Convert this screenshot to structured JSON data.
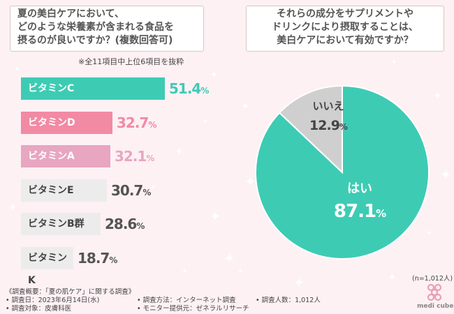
{
  "questions": {
    "left": [
      "夏の美白ケアにおいて、",
      "どのような栄養素が含まれる食品を",
      "摂るのが良いですか？(複数回答可)"
    ],
    "right": [
      "それらの成分をサプリメントや",
      "ドリンクにより摂取することは、",
      "美白ケアにおいて有効ですか？"
    ]
  },
  "note": "※全11項目中上位6項目を抜粋",
  "chart_data": [
    {
      "type": "bar",
      "orientation": "horizontal",
      "title": "夏の美白ケアにおいて、どのような栄養素が含まれる食品を摂るのが良いですか？(複数回答可)",
      "unit": "%",
      "categories": [
        "ビタミンC",
        "ビタミンD",
        "ビタミンA",
        "ビタミンE",
        "ビタミンB群",
        "ビタミンK"
      ],
      "values": [
        51.4,
        32.7,
        32.1,
        30.7,
        28.6,
        18.7
      ],
      "value_labels": [
        "51.4",
        "32.7",
        "32.1",
        "30.7",
        "28.6",
        "18.7"
      ],
      "xlim": [
        0,
        100
      ],
      "colors": [
        "#3ecbb4",
        "#f28aa4",
        "#e8a6c0",
        "#ececec",
        "#ececec",
        "#ececec"
      ],
      "value_colors": [
        "#3ecbb4",
        "#f28aa4",
        "#e8a6c0",
        "#555555",
        "#555555",
        "#555555"
      ],
      "label_colors": [
        "#ffffff",
        "#ffffff",
        "#ffffff",
        "#444444",
        "#444444",
        "#444444"
      ]
    },
    {
      "type": "pie",
      "title": "それらの成分をサプリメントやドリンクにより摂取することは、美白ケアにおいて有効ですか？",
      "unit": "%",
      "labels": [
        "はい",
        "いいえ"
      ],
      "values": [
        87.1,
        12.9
      ],
      "value_labels": [
        "87.1",
        "12.9"
      ],
      "colors": [
        "#3ecbb4",
        "#cfcfcf"
      ],
      "label_colors": [
        "#ffffff",
        "#444444"
      ],
      "n_label": "(n=1,012人)"
    }
  ],
  "footer": {
    "overview": "《調査概要：「夏の肌ケア」に関する調査》",
    "date": "• 調査日：2023年6月14日(水)",
    "target": "• 調査対象：皮膚科医",
    "method": "• 調査方法：インターネット調査",
    "provider": "• モニター提供元：ゼネラルリサーチ",
    "count": "• 調査人数：1,012人"
  },
  "logo": {
    "text": "medi cube",
    "color": "#e8a0b4"
  }
}
